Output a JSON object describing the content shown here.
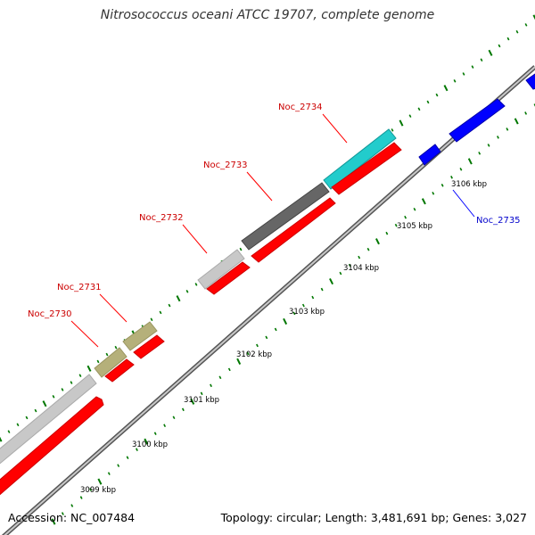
{
  "title": "Nitrosococcus oceani ATCC 19707, complete genome",
  "accession": "Accession: NC_007484",
  "summary": "Topology: circular; Length: 3,481,691 bp; Genes: 3,027",
  "colors": {
    "backbone": "#888888",
    "cds": "#ff0000",
    "forward_tick": "#007700",
    "reverse_tick": "#007700",
    "label_red": "#cc0000",
    "label_blue": "#0000cc"
  },
  "scale_labels": [
    "3099 kbp",
    "3100 kbp",
    "3101 kbp",
    "3102 kbp",
    "3103 kbp",
    "3104 kbp",
    "3105 kbp",
    "3106 kbp"
  ],
  "gene_labels": [
    {
      "text": "Noc_2730",
      "color": "#cc0000"
    },
    {
      "text": "Noc_2731",
      "color": "#cc0000"
    },
    {
      "text": "Noc_2732",
      "color": "#cc0000"
    },
    {
      "text": "Noc_2733",
      "color": "#cc0000"
    },
    {
      "text": "Noc_2734",
      "color": "#cc0000"
    },
    {
      "text": "Noc_2735",
      "color": "#0000cc"
    }
  ]
}
